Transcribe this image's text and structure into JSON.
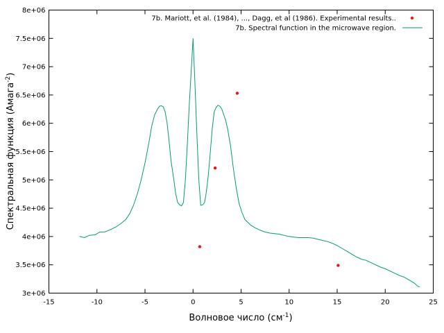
{
  "chart_data": {
    "type": "scatter+line",
    "xlabel": "Волновое число (см",
    "xlabel_sup": "-1",
    "xlabel_tail": ")",
    "ylabel": "Спектральная функция (Амага",
    "ylabel_sup": "-2",
    "ylabel_tail": ")",
    "xlim": [
      -15,
      25
    ],
    "ylim": [
      3000000,
      8000000
    ],
    "xticks": [
      -15,
      -10,
      -5,
      0,
      5,
      10,
      15,
      20,
      25
    ],
    "yticks": [
      3000000,
      3500000,
      4000000,
      4500000,
      5000000,
      5500000,
      6000000,
      6500000,
      7000000,
      7500000,
      8000000
    ],
    "ytick_labels": [
      "3e+06",
      "3.5e+06",
      "4e+06",
      "4.5e+06",
      "5e+06",
      "5.5e+06",
      "6e+06",
      "6.5e+06",
      "7e+06",
      "7.5e+06",
      "8e+06"
    ],
    "legend_position": "top-right",
    "grid": false,
    "series": [
      {
        "name": "7b. Mariott, et al. (1984), ..., Dagg, et al (1986). Experimental results..",
        "type": "scatter",
        "color": "#e41a1c",
        "x": [
          0.7,
          2.3,
          4.6,
          15.1
        ],
        "y": [
          3820000,
          5210000,
          6530000,
          3490000
        ]
      },
      {
        "name": "7b. Spectral function in the microwave region.",
        "type": "line",
        "color": "#009e73",
        "x": [
          -11.8,
          -11.3,
          -10.8,
          -10.2,
          -9.7,
          -9.2,
          -8.6,
          -8.0,
          -7.5,
          -7.0,
          -6.6,
          -6.2,
          -5.8,
          -5.4,
          -5.0,
          -4.6,
          -4.3,
          -4.0,
          -3.7,
          -3.5,
          -3.3,
          -3.1,
          -2.9,
          -2.7,
          -2.5,
          -2.3,
          -2.0,
          -1.8,
          -1.6,
          -1.4,
          -1.2,
          -1.0,
          -0.8,
          -0.6,
          -0.4,
          -0.2,
          0.0,
          0.2,
          0.4,
          0.6,
          0.8,
          1.0,
          1.2,
          1.4,
          1.6,
          1.8,
          2.0,
          2.2,
          2.4,
          2.6,
          2.8,
          3.0,
          3.2,
          3.4,
          3.6,
          3.9,
          4.2,
          4.5,
          4.8,
          5.1,
          5.4,
          5.7,
          6.0,
          6.5,
          7.0,
          7.5,
          8.0,
          8.5,
          9.0,
          9.5,
          10.0,
          10.5,
          11.0,
          11.5,
          12.0,
          12.5,
          13.0,
          13.5,
          14.0,
          14.5,
          15.0,
          15.5,
          16.0,
          16.5,
          17.0,
          17.5,
          18.0,
          18.5,
          19.0,
          19.5,
          20.0,
          20.5,
          21.0,
          21.5,
          22.0,
          22.5,
          23.0,
          23.4,
          23.6
        ],
        "y": [
          4000000,
          3980000,
          4020000,
          4030000,
          4080000,
          4080000,
          4120000,
          4170000,
          4230000,
          4300000,
          4400000,
          4550000,
          4750000,
          5000000,
          5300000,
          5650000,
          5950000,
          6150000,
          6250000,
          6300000,
          6310000,
          6290000,
          6200000,
          6000000,
          5700000,
          5350000,
          5000000,
          4750000,
          4600000,
          4560000,
          4540000,
          4600000,
          5000000,
          5600000,
          6300000,
          6900000,
          7500000,
          6700000,
          5800000,
          5000000,
          4550000,
          4560000,
          4600000,
          4800000,
          5100000,
          5500000,
          5900000,
          6200000,
          6280000,
          6320000,
          6300000,
          6250000,
          6150000,
          6050000,
          5900000,
          5600000,
          5200000,
          4850000,
          4580000,
          4420000,
          4300000,
          4250000,
          4200000,
          4150000,
          4110000,
          4080000,
          4060000,
          4050000,
          4040000,
          4020000,
          4000000,
          3990000,
          3980000,
          3980000,
          3980000,
          3970000,
          3950000,
          3930000,
          3910000,
          3880000,
          3840000,
          3790000,
          3740000,
          3690000,
          3640000,
          3600000,
          3580000,
          3540000,
          3500000,
          3460000,
          3430000,
          3390000,
          3350000,
          3310000,
          3280000,
          3230000,
          3180000,
          3120000,
          3110000
        ]
      }
    ]
  }
}
